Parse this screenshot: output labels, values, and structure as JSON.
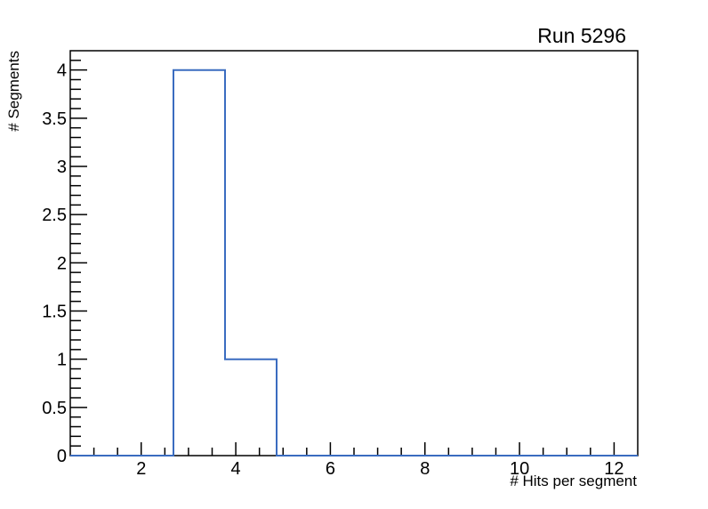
{
  "chart_data": {
    "type": "histogram-step",
    "title": "Run 5296",
    "xlabel": "# Hits per segment",
    "ylabel": "# Segments",
    "xlim": [
      0.5,
      12.5
    ],
    "ylim": [
      0,
      4.2
    ],
    "x_major_ticks": [
      2,
      4,
      6,
      8,
      10,
      12
    ],
    "x_minor_step": 0.5,
    "y_major_ticks": [
      0,
      0.5,
      1,
      1.5,
      2,
      2.5,
      3,
      3.5,
      4
    ],
    "y_minor_step": 0.1,
    "bins": {
      "start": 0.5,
      "width": 1.0909090909,
      "count": 11
    },
    "bin_contents": [
      0,
      0,
      4,
      1,
      0,
      0,
      0,
      0,
      0,
      0,
      0
    ],
    "grid": "off",
    "legend": "none",
    "colors": {
      "line": "#3a6cc0",
      "axis": "#000000",
      "background": "#ffffff"
    }
  }
}
